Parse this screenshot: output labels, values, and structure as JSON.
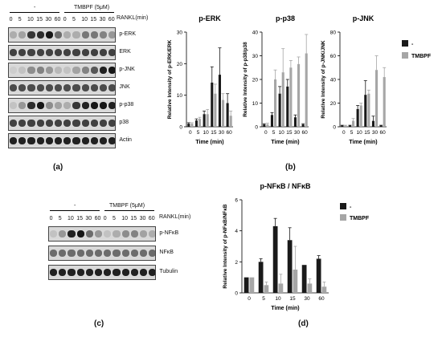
{
  "panels": {
    "a": "(a)",
    "b": "(b)",
    "c": "(c)",
    "d": "(d)"
  },
  "blot_a": {
    "minus_label": "-",
    "tmbpf_label": "TMBPF (5μM)",
    "rankl_label": "RANKL(min)",
    "times": [
      "0",
      "5",
      "10",
      "15",
      "30",
      "60",
      "0",
      "5",
      "10",
      "15",
      "30",
      "60"
    ],
    "rows": [
      {
        "label": "p-ERK",
        "intensity": [
          0.2,
          0.25,
          0.75,
          0.8,
          0.9,
          0.5,
          0.2,
          0.2,
          0.45,
          0.45,
          0.4,
          0.3
        ]
      },
      {
        "label": "ERK",
        "intensity": [
          0.7,
          0.7,
          0.7,
          0.7,
          0.7,
          0.7,
          0.7,
          0.7,
          0.7,
          0.7,
          0.7,
          0.7
        ]
      },
      {
        "label": "p-JNK",
        "intensity": [
          0.05,
          0.1,
          0.35,
          0.4,
          0.3,
          0.15,
          0.1,
          0.25,
          0.4,
          0.6,
          0.85,
          0.9
        ]
      },
      {
        "label": "JNK",
        "intensity": [
          0.65,
          0.65,
          0.65,
          0.65,
          0.65,
          0.65,
          0.65,
          0.65,
          0.65,
          0.65,
          0.65,
          0.65
        ]
      },
      {
        "label": "p-p38",
        "intensity": [
          0.1,
          0.3,
          0.8,
          0.9,
          0.35,
          0.25,
          0.2,
          0.75,
          0.85,
          0.9,
          0.9,
          0.85
        ]
      },
      {
        "label": "p38",
        "intensity": [
          0.7,
          0.7,
          0.7,
          0.7,
          0.7,
          0.7,
          0.7,
          0.7,
          0.7,
          0.7,
          0.7,
          0.7
        ]
      },
      {
        "label": "Actin",
        "intensity": [
          0.85,
          0.85,
          0.85,
          0.85,
          0.85,
          0.85,
          0.85,
          0.85,
          0.85,
          0.85,
          0.85,
          0.85
        ]
      }
    ]
  },
  "blot_c": {
    "minus_label": "-",
    "tmbpf_label": "TMBPF (5μM)",
    "rankl_label": "RANKL(min)",
    "times": [
      "0",
      "5",
      "10",
      "15",
      "30",
      "60",
      "0",
      "5",
      "10",
      "15",
      "30",
      "60"
    ],
    "rows": [
      {
        "label": "p-NFκB",
        "intensity": [
          0.1,
          0.3,
          0.85,
          0.9,
          0.5,
          0.3,
          0.1,
          0.2,
          0.35,
          0.4,
          0.25,
          0.2
        ]
      },
      {
        "label": "NFκB",
        "intensity": [
          0.5,
          0.5,
          0.5,
          0.5,
          0.5,
          0.5,
          0.5,
          0.5,
          0.5,
          0.5,
          0.5,
          0.5
        ]
      },
      {
        "label": "Tubulin",
        "intensity": [
          0.85,
          0.85,
          0.85,
          0.85,
          0.85,
          0.85,
          0.85,
          0.85,
          0.85,
          0.85,
          0.85,
          0.85
        ]
      }
    ]
  },
  "colors": {
    "control": "#1a1a1a",
    "tmbpf": "#a6a6a6"
  },
  "legend": {
    "control": "-",
    "tmbpf": "TMBPF"
  },
  "chart_data": [
    {
      "type": "bar",
      "title": "p-ERK",
      "ylabel": "Relative Intensity of p-ERK/ERK",
      "xlabel": "Time (min)",
      "categories": [
        "0",
        "5",
        "10",
        "15",
        "30",
        "60"
      ],
      "ylim": [
        0,
        30
      ],
      "yticks": [
        0,
        10,
        20,
        30
      ],
      "series": [
        {
          "name": "-",
          "values": [
            1,
            2,
            4,
            14,
            16.5,
            7.5
          ],
          "errors": [
            0.3,
            0.5,
            1,
            5,
            8.5,
            3
          ]
        },
        {
          "name": "TMBPF",
          "values": [
            1,
            2.5,
            4,
            10.5,
            8.5,
            3.5
          ],
          "errors": [
            0.3,
            0.5,
            1.5,
            3,
            2,
            1.5
          ]
        }
      ]
    },
    {
      "type": "bar",
      "title": "p-p38",
      "ylabel": "Relative Intensity of p-p38/p38",
      "xlabel": "Time (min)",
      "categories": [
        "0",
        "5",
        "10",
        "15",
        "30",
        "60"
      ],
      "ylim": [
        0,
        40
      ],
      "yticks": [
        0,
        10,
        20,
        30,
        40
      ],
      "series": [
        {
          "name": "-",
          "values": [
            1,
            5,
            14,
            17,
            4,
            1
          ],
          "errors": [
            0.3,
            1,
            3,
            3,
            1,
            0.3
          ]
        },
        {
          "name": "TMBPF",
          "values": [
            1,
            20,
            23,
            25,
            26.5,
            31
          ],
          "errors": [
            0.5,
            4,
            10,
            3,
            3,
            8
          ]
        }
      ]
    },
    {
      "type": "bar",
      "title": "p-JNK",
      "ylabel": "Relative Intensity of p-JNK/JNK",
      "xlabel": "Time (min)",
      "categories": [
        "0",
        "5",
        "10",
        "15",
        "30",
        "60"
      ],
      "ylim": [
        0,
        80
      ],
      "yticks": [
        0,
        20,
        40,
        60,
        80
      ],
      "series": [
        {
          "name": "-",
          "values": [
            1,
            1,
            15,
            27,
            5,
            1
          ],
          "errors": [
            0.3,
            0.3,
            3,
            12,
            4,
            0.3
          ]
        },
        {
          "name": "TMBPF",
          "values": [
            1,
            5,
            18,
            28,
            48,
            42
          ],
          "errors": [
            0.3,
            2,
            2,
            3,
            12,
            8
          ]
        }
      ]
    },
    {
      "type": "bar",
      "title": "p-NFκB / NFκB",
      "ylabel": "Relative Intensity of p-NFκB/NFκB",
      "xlabel": "Time (min)",
      "categories": [
        "0",
        "5",
        "10",
        "15",
        "30",
        "60"
      ],
      "ylim": [
        0,
        6
      ],
      "yticks": [
        0,
        2,
        4,
        6
      ],
      "series": [
        {
          "name": "-",
          "values": [
            1,
            2,
            4.3,
            3.4,
            1.8,
            2.2
          ],
          "errors": [
            0,
            0.2,
            0.5,
            0.8,
            0,
            0.2
          ]
        },
        {
          "name": "TMBPF",
          "values": [
            1,
            0.5,
            0.6,
            1.5,
            0.6,
            0.4
          ],
          "errors": [
            0,
            0.2,
            0.6,
            1.5,
            0.3,
            0.3
          ]
        }
      ]
    }
  ]
}
